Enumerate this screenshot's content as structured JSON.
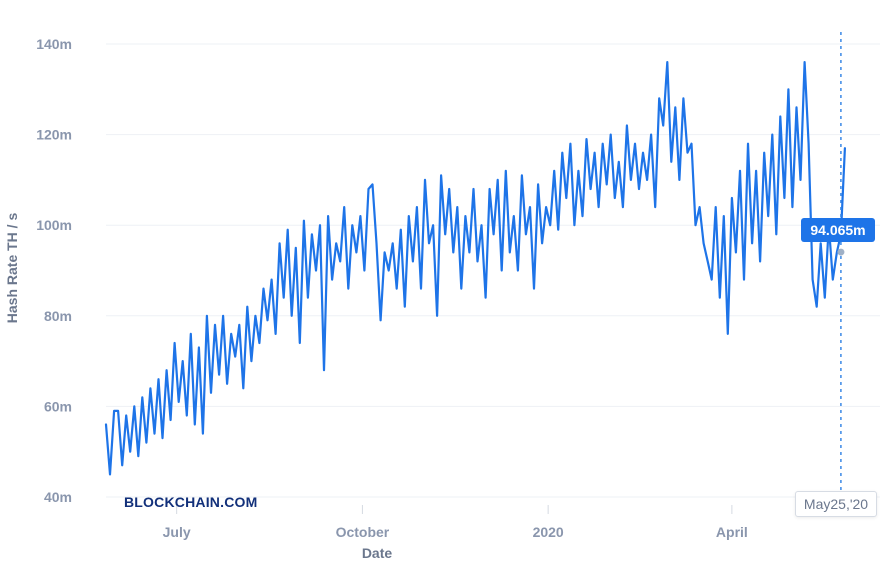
{
  "chart_data": {
    "type": "line",
    "title": "",
    "xlabel": "Date",
    "ylabel": "Hash Rate TH / s",
    "ylim": [
      40,
      140
    ],
    "y_ticks": [
      "40m",
      "60m",
      "80m",
      "100m",
      "120m",
      "140m"
    ],
    "y_tick_values": [
      40,
      60,
      80,
      100,
      120,
      140
    ],
    "x_ticks": [
      {
        "label": "July",
        "date": "2019-07-01"
      },
      {
        "label": "October",
        "date": "2019-10-01"
      },
      {
        "label": "2020",
        "date": "2020-01-01"
      },
      {
        "label": "April",
        "date": "2020-04-01"
      }
    ],
    "x_range": [
      "2019-05-27",
      "2020-05-30"
    ],
    "grid": true,
    "brand": "BLOCKCHAIN.COM",
    "tooltip": {
      "value_label": "94.065m",
      "value": 94.065,
      "date_label": "May25,'20",
      "date": "2020-05-25"
    },
    "series": [
      {
        "name": "Hash Rate",
        "color": "#1e74e8",
        "start_date": "2019-05-27",
        "step_days": 2,
        "values": [
          56,
          45,
          59,
          59,
          47,
          58,
          50,
          60,
          49,
          62,
          52,
          64,
          54,
          66,
          53,
          68,
          57,
          74,
          61,
          70,
          58,
          76,
          56,
          73,
          54,
          80,
          63,
          78,
          67,
          80,
          65,
          76,
          71,
          78,
          64,
          82,
          70,
          80,
          74,
          86,
          79,
          88,
          76,
          96,
          84,
          99,
          80,
          95,
          74,
          101,
          84,
          98,
          90,
          100,
          68,
          102,
          88,
          96,
          92,
          104,
          86,
          100,
          94,
          102,
          90,
          108,
          109,
          96,
          79,
          94,
          90,
          96,
          86,
          99,
          82,
          102,
          92,
          104,
          86,
          110,
          96,
          100,
          80,
          111,
          98,
          108,
          94,
          104,
          86,
          102,
          94,
          108,
          92,
          100,
          84,
          108,
          98,
          110,
          90,
          112,
          94,
          102,
          90,
          111,
          98,
          104,
          86,
          109,
          96,
          104,
          100,
          112,
          99,
          116,
          106,
          118,
          100,
          112,
          102,
          119,
          108,
          116,
          104,
          118,
          109,
          120,
          106,
          114,
          104,
          122,
          110,
          118,
          108,
          116,
          110,
          120,
          104,
          128,
          122,
          136,
          114,
          126,
          110,
          128,
          116,
          118,
          100,
          104,
          96,
          92,
          88,
          104,
          84,
          102,
          76,
          106,
          94,
          112,
          88,
          118,
          96,
          112,
          92,
          116,
          102,
          120,
          98,
          124,
          106,
          130,
          104,
          126,
          110,
          136,
          118,
          88,
          82,
          96,
          84,
          100,
          88,
          94.065,
          98,
          117
        ]
      }
    ]
  }
}
